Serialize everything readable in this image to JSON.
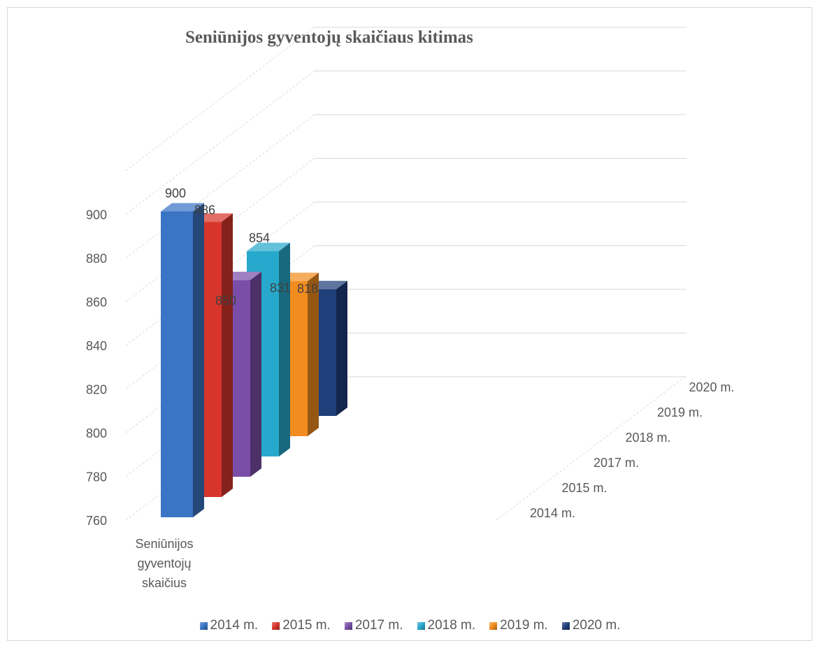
{
  "chart_data": {
    "type": "bar",
    "title": "Seniūnijos gyventojų skaičiaus kitimas",
    "categories": [
      "Seniūnijos gyventojų skaičius"
    ],
    "category_label_lines": [
      "Seniūnijos",
      "gyventojų",
      "skaičius"
    ],
    "series": [
      {
        "name": "2014 m.",
        "values": [
          900
        ],
        "color": "#3a74c4"
      },
      {
        "name": "2015 m.",
        "values": [
          886
        ],
        "color": "#d7352c"
      },
      {
        "name": "2017 m.",
        "values": [
          850
        ],
        "color": "#7a4ea8"
      },
      {
        "name": "2018 m.",
        "values": [
          854
        ],
        "color": "#26a9cc"
      },
      {
        "name": "2019 m.",
        "values": [
          831
        ],
        "color": "#f28c1e"
      },
      {
        "name": "2020 m.",
        "values": [
          818
        ],
        "color": "#1f3f7a"
      }
    ],
    "depth_axis_labels": [
      "2014 m.",
      "2015 m.",
      "2017 m.",
      "2018 m.",
      "2019 m.",
      "2020 m."
    ],
    "y_ticks": [
      760,
      780,
      800,
      820,
      840,
      860,
      880,
      900
    ],
    "ylim": [
      760,
      900
    ],
    "style": "3d-column",
    "grid": true,
    "legend_position": "bottom"
  }
}
